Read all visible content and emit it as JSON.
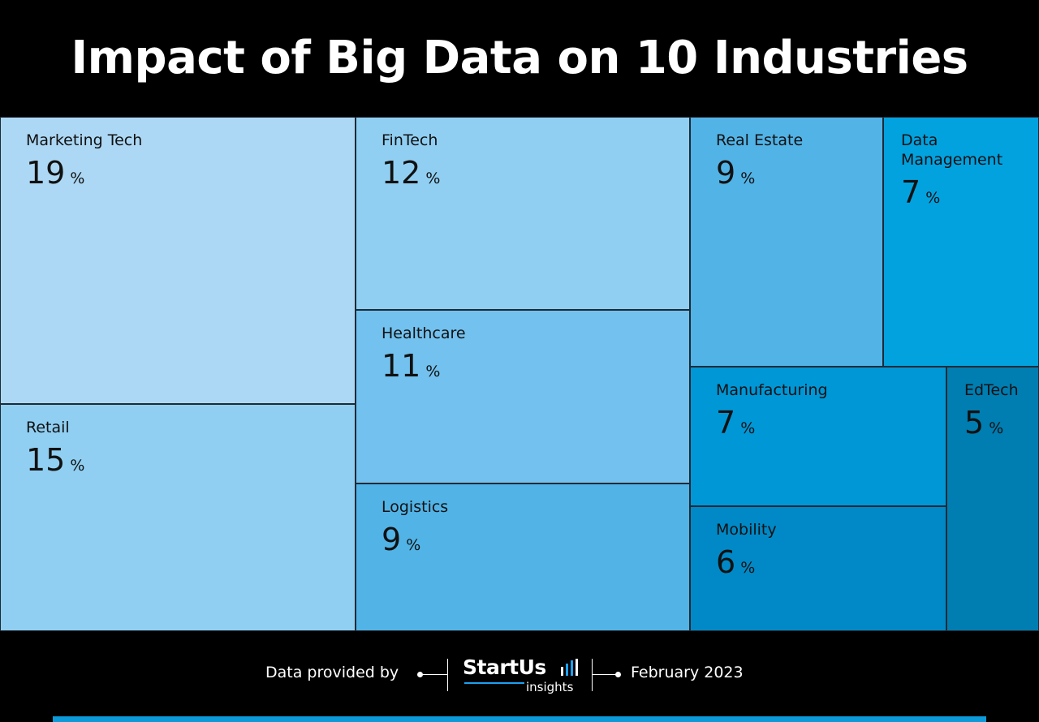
{
  "title": "Impact of Big Data on 10 Industries",
  "chart_data": {
    "type": "treemap",
    "unit": "%",
    "items": [
      {
        "label": "Marketing Tech",
        "value": 19,
        "color": "#add8f5"
      },
      {
        "label": "Retail",
        "value": 15,
        "color": "#90cff2"
      },
      {
        "label": "FinTech",
        "value": 12,
        "color": "#90cff2"
      },
      {
        "label": "Healthcare",
        "value": 11,
        "color": "#72c1ee"
      },
      {
        "label": "Logistics",
        "value": 9,
        "color": "#52b3e6"
      },
      {
        "label": "Real Estate",
        "value": 9,
        "color": "#52b3e6"
      },
      {
        "label": "Data Management",
        "value": 7,
        "color": "#02a2df"
      },
      {
        "label": "Manufacturing",
        "value": 7,
        "color": "#0097d7"
      },
      {
        "label": "Mobility",
        "value": 6,
        "color": "#0089c6"
      },
      {
        "label": "EdTech",
        "value": 5,
        "color": "#007db1"
      }
    ]
  },
  "footer": {
    "provided_by": "Data provided by",
    "logo_main": "StartUs",
    "logo_sub": "insights",
    "date": "February 2023"
  },
  "colors": {
    "background": "#000000",
    "accent_bar": "#0d9ad8",
    "logo_accent": "#1da1f2"
  }
}
